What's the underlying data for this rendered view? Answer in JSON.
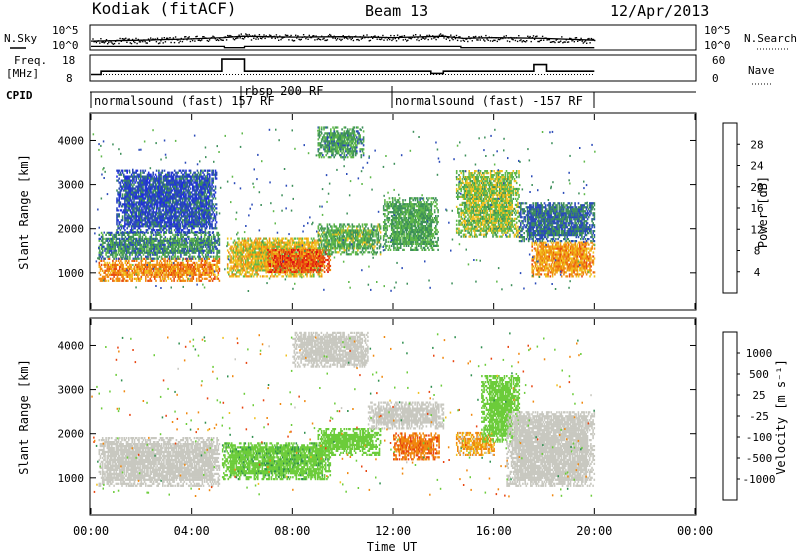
{
  "header": {
    "station": "Kodiak (fitACF)",
    "beam": "Beam 13",
    "date": "12/Apr/2013"
  },
  "labels": {
    "nsky": "N.Sky",
    "nsearch": "N.Search",
    "freq_line1": "Freq.",
    "freq_line2": "[MHz]",
    "nave": "Nave",
    "cpid": "CPID"
  },
  "cpid_segments": [
    {
      "label": "normalsound (fast) 157 RF",
      "start": 0,
      "end": 6.0
    },
    {
      "label": "rbsp 200 RF",
      "start": 6.0,
      "end": 12.0
    },
    {
      "label": "normalsound (fast) -157 RF",
      "start": 12.0,
      "end": 20.0
    }
  ],
  "axes": {
    "time_ticks": [
      "00:00",
      "04:00",
      "08:00",
      "12:00",
      "16:00",
      "20:00",
      "00:00"
    ],
    "time_title": "Time UT",
    "range_ticks": [
      "1000",
      "2000",
      "3000",
      "4000"
    ],
    "range_title": "Slant Range [km]",
    "nsky_ticks": [
      "10^5",
      "10^0"
    ],
    "freq_ticks": [
      "18",
      "8"
    ],
    "nave_ticks": [
      "60",
      "0"
    ]
  },
  "colorbars": {
    "power": {
      "title": "Power [dB]",
      "ticks": [
        "4",
        "8",
        "12",
        "16",
        "20",
        "24",
        "28"
      ],
      "colors": [
        "#1f2de0",
        "#2a4ab8",
        "#3d8f5a",
        "#5fb84a",
        "#f0c020",
        "#f08a10",
        "#e84a10",
        "#e01010"
      ]
    },
    "velocity": {
      "title": "Velocity [m s⁻¹]",
      "ticks": [
        "1000",
        "500",
        "25",
        "-25",
        "-100",
        "-500",
        "-1000"
      ],
      "colors": [
        "#2a3ab8",
        "#2f8f4f",
        "#6ccc3a",
        "#c8c8c0",
        "#f0c020",
        "#f0880f",
        "#e84410",
        "#e01010"
      ]
    }
  },
  "chart_data": [
    {
      "type": "line",
      "title": "N.Sky / N.Search",
      "x_unit": "hours UT",
      "xlim": [
        0,
        24
      ],
      "series": [
        {
          "name": "N.Sky",
          "x": [
            0,
            2,
            4,
            5.3,
            6,
            8,
            10,
            12,
            14,
            14.8,
            16,
            18,
            20
          ],
          "y_log10": [
            1.8,
            2.0,
            2.3,
            2.6,
            2.9,
            2.7,
            2.8,
            2.6,
            2.9,
            2.4,
            2.6,
            2.4,
            2.0
          ]
        },
        {
          "name": "N.Search",
          "x": [
            0,
            5.3,
            5.3,
            6.1,
            6.1,
            14.7,
            14.7,
            20
          ],
          "y_log10": [
            0.6,
            0.6,
            0.3,
            0.3,
            0.6,
            0.6,
            0.3,
            0.3
          ]
        }
      ]
    },
    {
      "type": "line",
      "title": "Freq / Nave",
      "x_unit": "hours UT",
      "xlim": [
        0,
        24
      ],
      "series": [
        {
          "name": "Freq [MHz]",
          "x": [
            0,
            0.4,
            0.4,
            5.2,
            5.2,
            6.1,
            6.1,
            13.5,
            13.5,
            14.0,
            14.0,
            17.6,
            17.6,
            18.1,
            18.1,
            20
          ],
          "y": [
            10.5,
            10.5,
            12.0,
            12.0,
            17.5,
            17.5,
            12.0,
            12.0,
            11.0,
            11.0,
            12.0,
            12.0,
            15.0,
            15.0,
            12.0,
            12.0
          ]
        },
        {
          "name": "Nave",
          "x": [
            0,
            20
          ],
          "y": [
            15,
            15
          ]
        }
      ]
    },
    {
      "type": "heatmap",
      "title": "Power [dB]",
      "xlabel": "Time UT",
      "ylabel": "Slant Range [km]",
      "xlim": [
        0,
        24
      ],
      "ylim": [
        180,
        4600
      ],
      "regions": [
        {
          "t0": 0.3,
          "t1": 5.1,
          "r0": 800,
          "r1": 1300,
          "db": 22
        },
        {
          "t0": 0.3,
          "t1": 5.1,
          "r0": 1300,
          "r1": 1900,
          "db": 10
        },
        {
          "t0": 1.0,
          "t1": 5.0,
          "r0": 1900,
          "r1": 3300,
          "db": 6
        },
        {
          "t0": 5.4,
          "t1": 9.2,
          "r0": 900,
          "r1": 1800,
          "db": 18
        },
        {
          "t0": 7.0,
          "t1": 9.5,
          "r0": 1000,
          "r1": 1500,
          "db": 26
        },
        {
          "t0": 9.0,
          "t1": 11.5,
          "r0": 1400,
          "r1": 2100,
          "db": 13
        },
        {
          "t0": 9.0,
          "t1": 10.8,
          "r0": 3600,
          "r1": 4300,
          "db": 11
        },
        {
          "t0": 11.6,
          "t1": 13.8,
          "r0": 1500,
          "r1": 2700,
          "db": 12
        },
        {
          "t0": 14.5,
          "t1": 17.0,
          "r0": 1800,
          "r1": 3300,
          "db": 15
        },
        {
          "t0": 17.5,
          "t1": 20.0,
          "r0": 900,
          "r1": 1700,
          "db": 21
        },
        {
          "t0": 17.0,
          "t1": 20.0,
          "r0": 1700,
          "r1": 2600,
          "db": 8
        }
      ]
    },
    {
      "type": "heatmap",
      "title": "Velocity [m s-1]",
      "xlabel": "Time UT",
      "ylabel": "Slant Range [km]",
      "xlim": [
        0,
        24
      ],
      "ylim": [
        180,
        4600
      ],
      "regions": [
        {
          "t0": 0.3,
          "t1": 5.1,
          "r0": 800,
          "r1": 1900,
          "v": 0
        },
        {
          "t0": 5.2,
          "t1": 9.5,
          "r0": 950,
          "r1": 1800,
          "v": 400
        },
        {
          "t0": 9.0,
          "t1": 11.5,
          "r0": 1500,
          "r1": 2100,
          "v": 300
        },
        {
          "t0": 12.0,
          "t1": 13.8,
          "r0": 1400,
          "r1": 2000,
          "v": -450
        },
        {
          "t0": 11.0,
          "t1": 14.0,
          "r0": 2100,
          "r1": 2700,
          "v": 0
        },
        {
          "t0": 14.5,
          "t1": 16.0,
          "r0": 1500,
          "r1": 2000,
          "v": -120
        },
        {
          "t0": 15.5,
          "t1": 17.0,
          "r0": 1800,
          "r1": 3300,
          "v": 150
        },
        {
          "t0": 16.5,
          "t1": 20.0,
          "r0": 800,
          "r1": 2500,
          "v": 0
        },
        {
          "t0": 8.0,
          "t1": 11.0,
          "r0": 3500,
          "r1": 4300,
          "v": 0
        }
      ]
    }
  ]
}
